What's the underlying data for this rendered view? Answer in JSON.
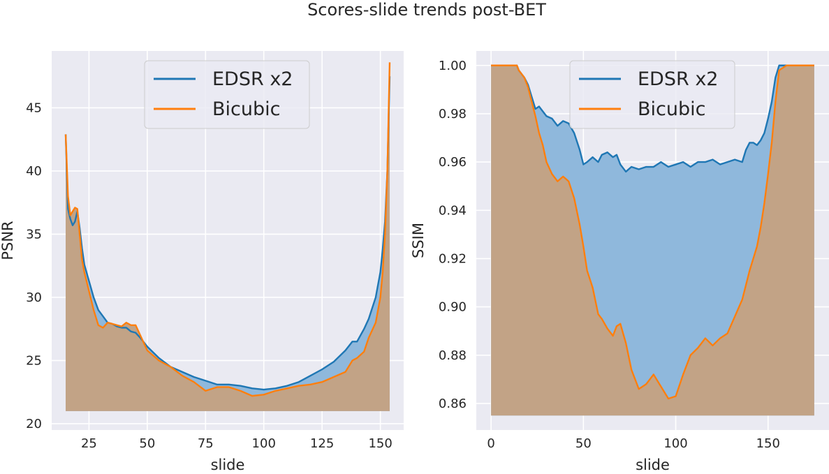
{
  "figure": {
    "title": "Scores-slide trends post-BET"
  },
  "colors": {
    "series_a": "#1f77b4",
    "series_b": "#ff7f0e",
    "fill_a": "#8fb8dc",
    "fill_b": "#c2a386",
    "background": "#eaeaf2",
    "grid": "#ffffff"
  },
  "chart_data": [
    {
      "type": "area",
      "id": "psnr",
      "xlabel": "slide",
      "ylabel": "PSNR",
      "xlim": [
        9,
        160
      ],
      "ylim": [
        19.5,
        49.5
      ],
      "fill_baseline": 21,
      "xticks": [
        25,
        50,
        75,
        100,
        125,
        150
      ],
      "yticks": [
        20,
        25,
        30,
        35,
        40,
        45
      ],
      "grid": true,
      "legend_position": "upper center",
      "series": [
        {
          "name": "EDSR x2",
          "x": [
            15,
            16,
            17,
            18,
            19,
            20,
            21,
            22,
            23,
            25,
            27,
            29,
            31,
            33,
            35,
            37,
            39,
            41,
            43,
            45,
            47,
            50,
            55,
            60,
            65,
            70,
            75,
            80,
            85,
            90,
            95,
            100,
            105,
            110,
            115,
            120,
            125,
            130,
            135,
            138,
            140,
            143,
            145,
            148,
            150,
            151,
            152,
            153,
            154
          ],
          "values": [
            42.9,
            37.0,
            36.2,
            35.7,
            36.0,
            36.8,
            35.5,
            33.9,
            32.6,
            31.3,
            30.0,
            29.0,
            28.5,
            28.0,
            27.9,
            27.7,
            27.6,
            27.6,
            27.3,
            27.2,
            26.8,
            26.1,
            25.2,
            24.5,
            24.1,
            23.7,
            23.4,
            23.1,
            23.1,
            23.0,
            22.8,
            22.7,
            22.8,
            23.0,
            23.3,
            23.8,
            24.3,
            24.9,
            25.8,
            26.5,
            26.5,
            27.5,
            28.3,
            30.0,
            32.0,
            33.8,
            36.0,
            40.0,
            47.5
          ]
        },
        {
          "name": "Bicubic",
          "x": [
            15,
            16,
            17,
            18,
            19,
            20,
            21,
            22,
            23,
            25,
            27,
            29,
            31,
            33,
            35,
            37,
            39,
            41,
            43,
            45,
            47,
            50,
            55,
            60,
            65,
            70,
            75,
            80,
            85,
            90,
            95,
            100,
            105,
            110,
            115,
            120,
            125,
            130,
            135,
            138,
            140,
            143,
            145,
            148,
            150,
            151,
            152,
            153,
            154
          ],
          "values": [
            42.9,
            38.0,
            36.5,
            36.8,
            37.1,
            37.0,
            35.0,
            33.0,
            32.0,
            30.5,
            29.0,
            27.8,
            27.6,
            28.0,
            27.9,
            27.8,
            27.7,
            28.0,
            27.8,
            27.8,
            27.0,
            25.8,
            25.0,
            24.5,
            23.8,
            23.3,
            22.6,
            22.9,
            22.9,
            22.6,
            22.2,
            22.3,
            22.6,
            22.8,
            23.0,
            23.1,
            23.3,
            23.7,
            24.1,
            25.0,
            25.2,
            25.7,
            26.8,
            28.0,
            30.0,
            32.0,
            35.0,
            40.0,
            48.6
          ]
        }
      ]
    },
    {
      "type": "area",
      "id": "ssim",
      "xlabel": "slide",
      "ylabel": "SSIM",
      "xlim": [
        -8,
        183
      ],
      "ylim": [
        0.849,
        1.006
      ],
      "fill_baseline": 0.855,
      "xticks": [
        0,
        50,
        100,
        150
      ],
      "yticks": [
        0.86,
        0.88,
        0.9,
        0.92,
        0.94,
        0.96,
        0.98,
        1.0
      ],
      "grid": true,
      "legend_position": "upper center",
      "series": [
        {
          "name": "EDSR x2",
          "x": [
            0,
            14,
            15,
            18,
            20,
            22,
            24,
            26,
            28,
            30,
            33,
            36,
            39,
            42,
            45,
            48,
            50,
            52,
            55,
            58,
            60,
            63,
            66,
            68,
            70,
            73,
            76,
            80,
            84,
            88,
            92,
            96,
            100,
            104,
            108,
            112,
            116,
            120,
            124,
            128,
            132,
            136,
            138,
            140,
            142,
            144,
            146,
            148,
            150,
            152,
            154,
            156,
            160,
            175
          ],
          "values": [
            1.0,
            1.0,
            0.998,
            0.995,
            0.992,
            0.987,
            0.982,
            0.983,
            0.981,
            0.979,
            0.978,
            0.975,
            0.977,
            0.976,
            0.972,
            0.965,
            0.959,
            0.96,
            0.962,
            0.96,
            0.963,
            0.964,
            0.962,
            0.963,
            0.959,
            0.956,
            0.958,
            0.957,
            0.958,
            0.958,
            0.96,
            0.958,
            0.959,
            0.96,
            0.958,
            0.96,
            0.96,
            0.961,
            0.959,
            0.96,
            0.961,
            0.96,
            0.965,
            0.968,
            0.968,
            0.967,
            0.969,
            0.972,
            0.978,
            0.985,
            0.995,
            1.0,
            1.0,
            1.0
          ]
        },
        {
          "name": "Bicubic",
          "x": [
            0,
            14,
            15,
            18,
            20,
            22,
            24,
            26,
            28,
            30,
            33,
            36,
            39,
            42,
            45,
            48,
            50,
            52,
            55,
            58,
            60,
            63,
            66,
            68,
            70,
            73,
            76,
            80,
            84,
            88,
            92,
            96,
            100,
            104,
            108,
            112,
            116,
            120,
            124,
            128,
            132,
            136,
            138,
            140,
            142,
            144,
            146,
            148,
            150,
            152,
            154,
            156,
            160,
            175
          ],
          "values": [
            1.0,
            1.0,
            0.998,
            0.995,
            0.991,
            0.985,
            0.979,
            0.972,
            0.967,
            0.96,
            0.955,
            0.952,
            0.954,
            0.952,
            0.945,
            0.934,
            0.925,
            0.915,
            0.908,
            0.897,
            0.895,
            0.891,
            0.888,
            0.892,
            0.893,
            0.885,
            0.874,
            0.866,
            0.868,
            0.872,
            0.867,
            0.862,
            0.863,
            0.872,
            0.88,
            0.883,
            0.887,
            0.884,
            0.887,
            0.889,
            0.896,
            0.903,
            0.909,
            0.915,
            0.92,
            0.925,
            0.933,
            0.943,
            0.955,
            0.968,
            0.985,
            0.998,
            1.0,
            1.0
          ]
        }
      ]
    }
  ]
}
